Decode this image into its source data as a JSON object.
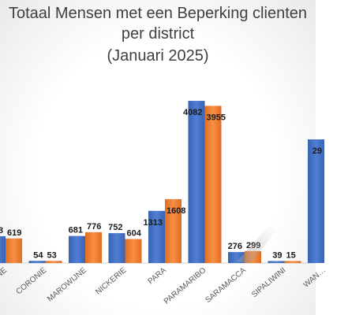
{
  "chart_data": {
    "type": "bar",
    "title": [
      "Totaal Mensen met een Beperking clienten",
      "per district",
      "(Januari 2025)"
    ],
    "xlabel": "",
    "ylabel": "",
    "categories": [
      "…NE",
      "CORONIE",
      "MAROWIJNE",
      "NICKERIE",
      "PARA",
      "PARAMARIBO",
      "SARAMACCA",
      "SIPALIWINI",
      "WAN…"
    ],
    "series": [
      {
        "values": [
          null,
          54,
          681,
          752,
          1313,
          4082,
          276,
          39,
          null
        ],
        "labels": [
          "8",
          "54",
          "681",
          "752",
          "1313",
          "4082",
          "276",
          "39",
          "29"
        ],
        "color": "#4472c4"
      },
      {
        "values": [
          619,
          53,
          776,
          604,
          1608,
          3955,
          299,
          15,
          null
        ],
        "labels": [
          "619",
          "53",
          "776",
          "604",
          "1608",
          "3955",
          "299",
          "15",
          ""
        ],
        "color": "#ed7d31"
      }
    ],
    "ylim": [
      0,
      4400
    ],
    "grid": false,
    "legend": "none"
  }
}
